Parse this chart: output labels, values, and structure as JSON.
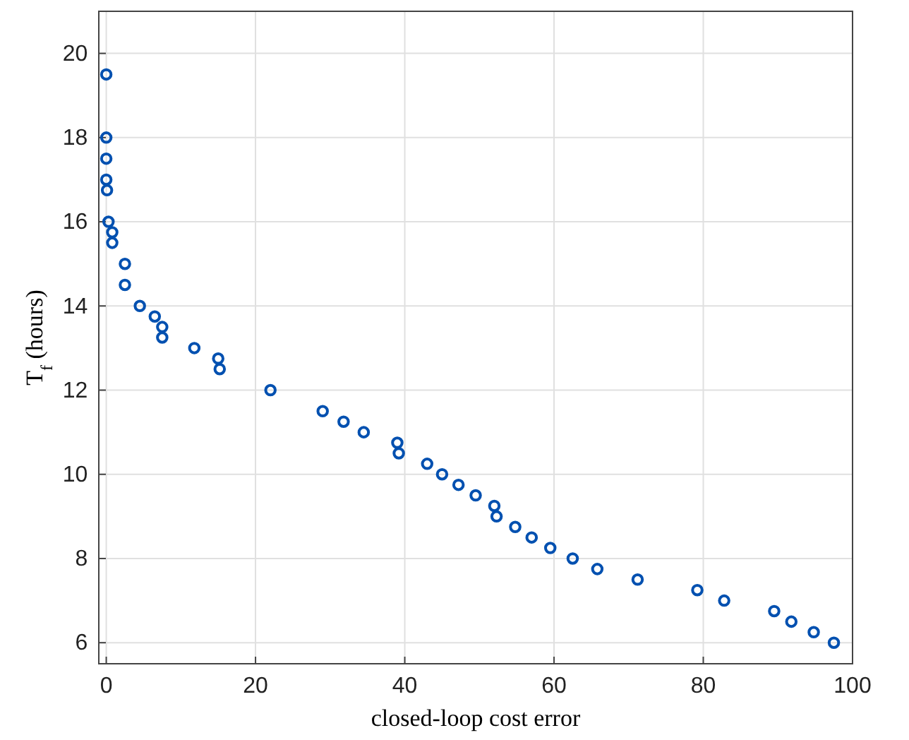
{
  "chart_data": {
    "type": "scatter",
    "xlabel": "closed-loop cost error",
    "ylabel": "T$_{f}$ (hours)",
    "xlim": [
      -1,
      100
    ],
    "ylim": [
      5.5,
      21
    ],
    "xticks": [
      0,
      20,
      40,
      60,
      80,
      100
    ],
    "yticks": [
      6,
      8,
      10,
      12,
      14,
      16,
      18,
      20
    ],
    "grid": true,
    "marker": "circle",
    "series": [
      {
        "color": "#0050b0",
        "x": [
          0,
          0,
          0,
          0,
          0.1,
          0.3,
          0.8,
          0.8,
          2.5,
          2.5,
          4.5,
          6.5,
          7.5,
          7.5,
          11.8,
          15,
          15.2,
          22,
          29,
          31.8,
          34.5,
          39,
          39.2,
          43,
          45,
          47.2,
          49.5,
          52,
          52.3,
          54.8,
          57,
          59.5,
          62.5,
          65.8,
          71.2,
          79.2,
          82.8,
          89.5,
          91.8,
          94.8,
          97.5
        ],
        "values": [
          19.5,
          18,
          17.5,
          17,
          16.75,
          16,
          15.75,
          15.5,
          15,
          14.5,
          14,
          13.75,
          13.5,
          13.25,
          13,
          12.75,
          12.5,
          12,
          11.5,
          11.25,
          11,
          10.75,
          10.5,
          10.25,
          10,
          9.75,
          9.5,
          9.25,
          9,
          8.75,
          8.5,
          8.25,
          8,
          7.75,
          7.5,
          7.25,
          7,
          6.75,
          6.5,
          6.25,
          6
        ]
      }
    ]
  }
}
